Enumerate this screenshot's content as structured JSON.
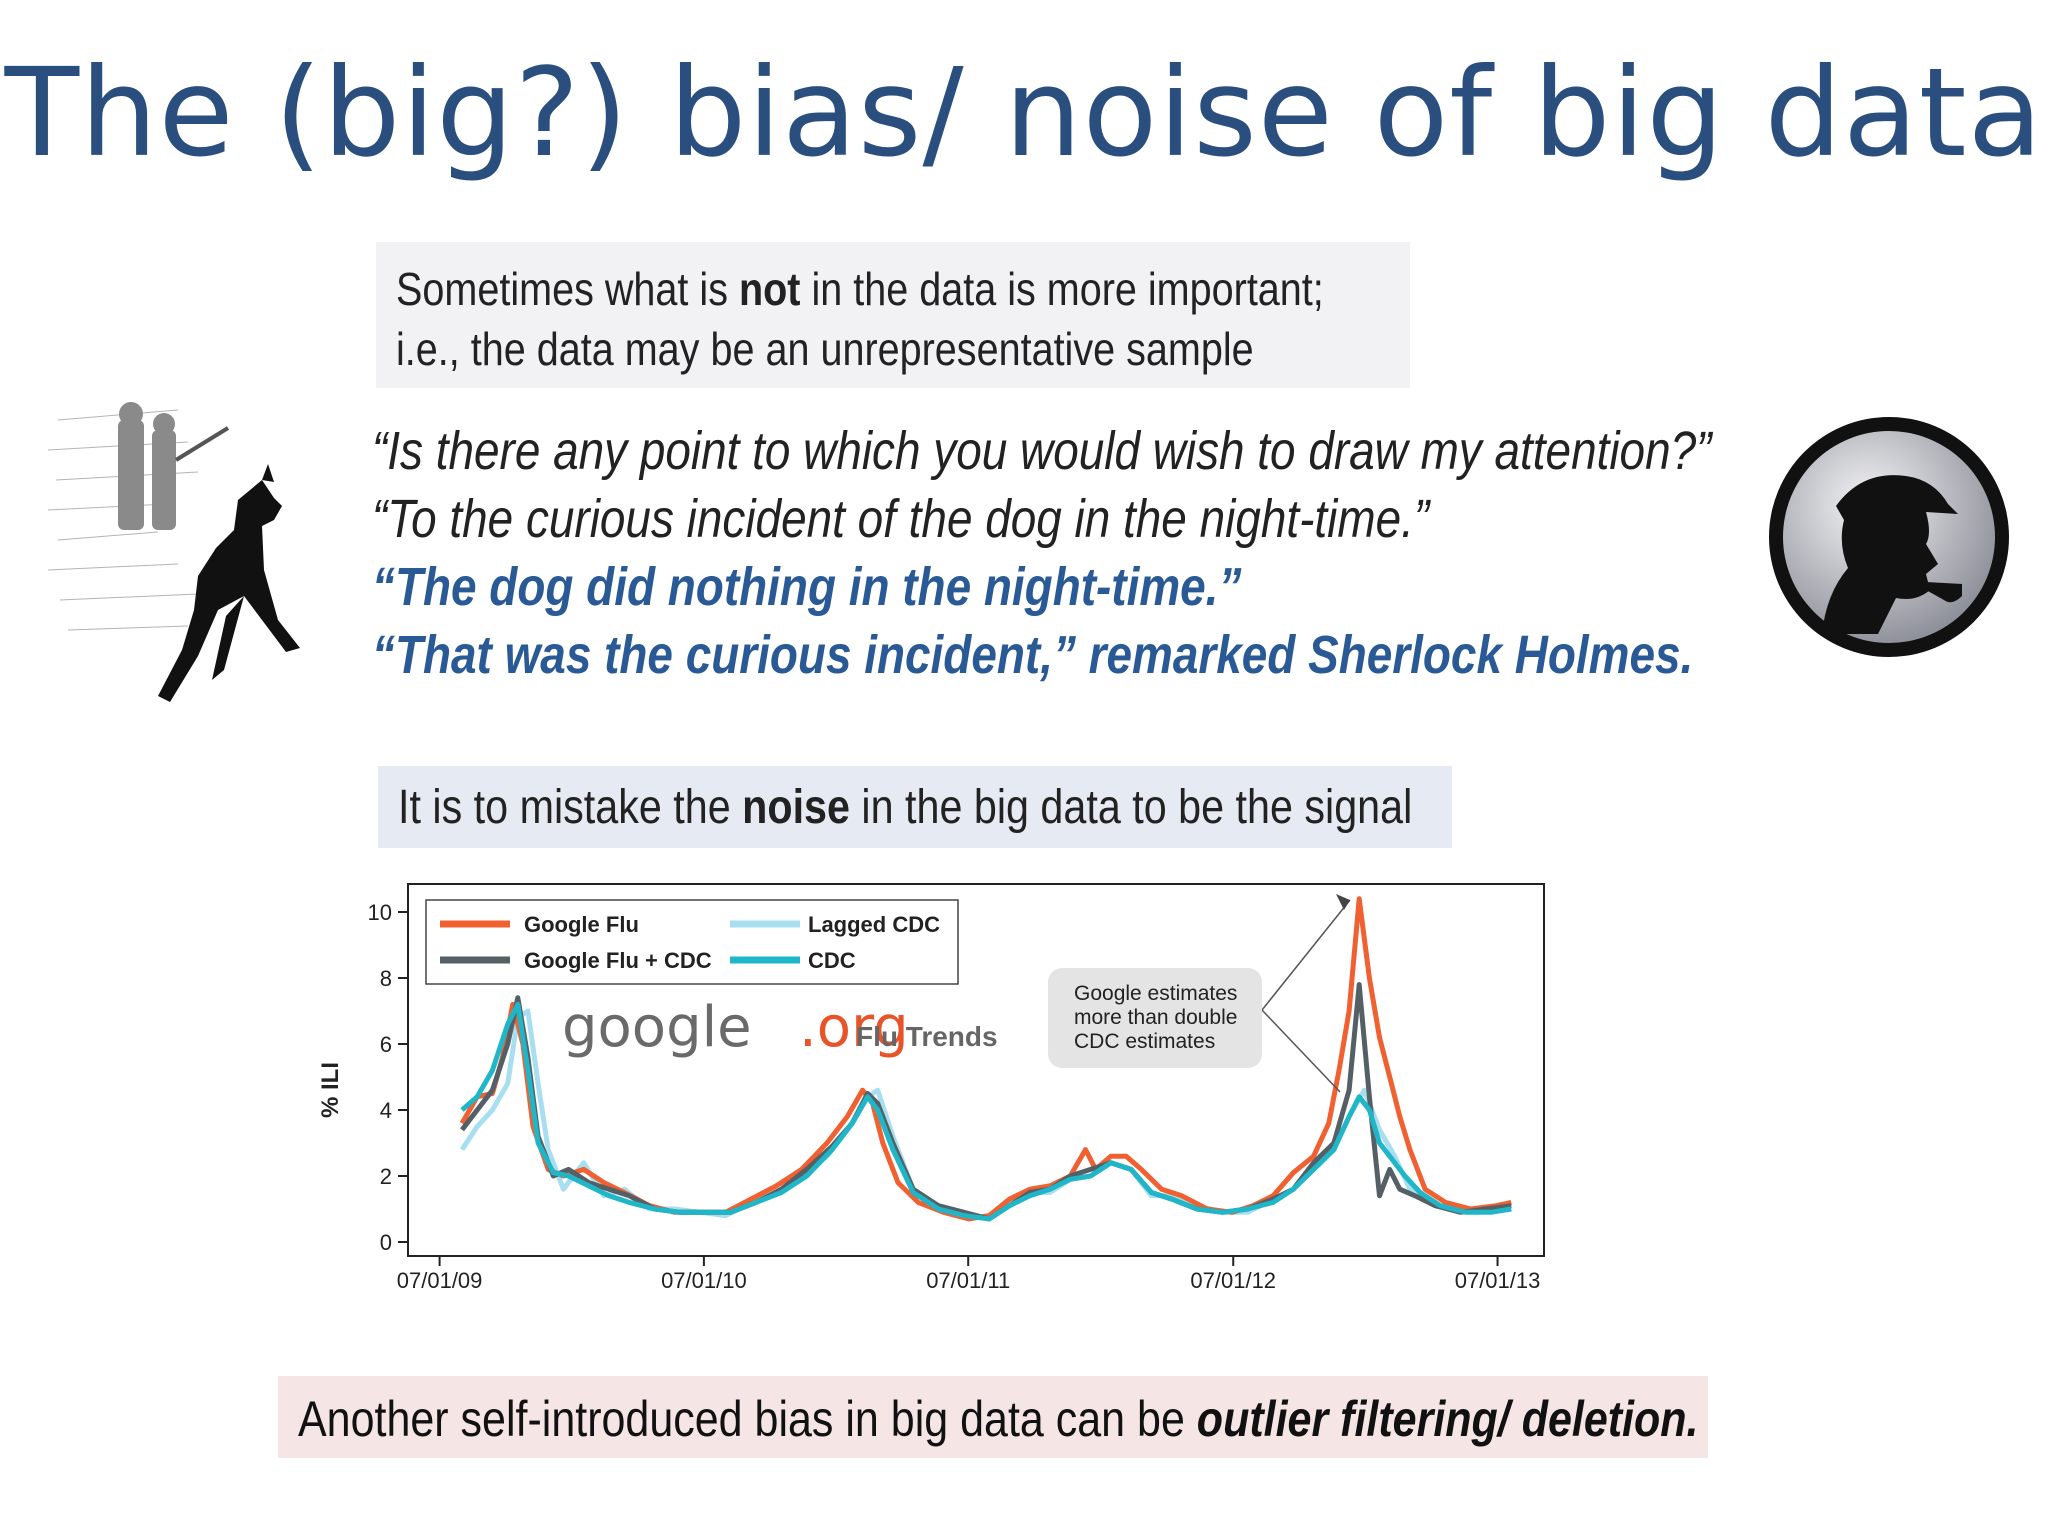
{
  "slide": {
    "title": "The (big?) bias/ noise of  big data",
    "box1": {
      "line1_pre": "Sometimes what is ",
      "line1_bold": "not",
      "line1_post": " in the data is more important;",
      "line2": "i.e., the data may be an unrepresentative sample"
    },
    "quotes": [
      "“Is there any point to which you would wish to draw my attention?”",
      "“To the curious incident of the dog in the night-time.”",
      "“The dog did nothing in the night-time.”",
      "“That was the curious incident,” remarked Sherlock Holmes."
    ],
    "box2": {
      "pre": "It is to mistake the ",
      "bold": "noise",
      "post": " in the big data to be the signal"
    },
    "box3": {
      "pre": "Another self-introduced bias in big data can be ",
      "bold": "outlier filtering/ deletion."
    }
  },
  "colors": {
    "title": "#2a4f7e",
    "quote_blue": "#2a5a95",
    "google_flu": "#f06030",
    "google_flu_cdc": "#556066",
    "lagged_cdc": "#a8dff0",
    "cdc": "#1fb6c8"
  },
  "chart_data": {
    "type": "line",
    "ylabel": "% ILI",
    "ylim": [
      0,
      10
    ],
    "yticks": [
      0,
      2,
      4,
      6,
      8,
      10
    ],
    "xlim": [
      "2009-06-15",
      "2013-08-01"
    ],
    "xticks": [
      {
        "date": "2009-07-01",
        "label": "07/01/09"
      },
      {
        "date": "2010-07-01",
        "label": "07/01/10"
      },
      {
        "date": "2011-07-01",
        "label": "07/01/11"
      },
      {
        "date": "2012-07-01",
        "label": "07/01/12"
      },
      {
        "date": "2013-07-01",
        "label": "07/01/13"
      }
    ],
    "legend": {
      "placement": "top-left",
      "labels": [
        "Google Flu",
        "Lagged CDC",
        "Google Flu + CDC",
        "CDC"
      ]
    },
    "logo": {
      "google": "google",
      "org": ".org",
      "flu_trends": "Flu Trends"
    },
    "annotation": {
      "lines": [
        "Google estimates",
        "more than double",
        "CDC estimates"
      ]
    },
    "series": [
      {
        "name": "Google Flu",
        "x": [
          "2009-08-01",
          "2009-08-22",
          "2009-09-12",
          "2009-09-26",
          "2009-10-10",
          "2009-10-24",
          "2009-11-07",
          "2009-11-28",
          "2009-12-19",
          "2010-01-16",
          "2010-02-13",
          "2010-03-13",
          "2010-04-17",
          "2010-05-22",
          "2010-06-26",
          "2010-07-31",
          "2010-09-04",
          "2010-10-09",
          "2010-11-13",
          "2010-12-18",
          "2011-01-15",
          "2011-02-05",
          "2011-02-19",
          "2011-03-05",
          "2011-03-26",
          "2011-04-23",
          "2011-05-28",
          "2011-07-02",
          "2011-07-30",
          "2011-08-27",
          "2011-09-24",
          "2011-10-22",
          "2011-11-19",
          "2011-12-10",
          "2011-12-24",
          "2012-01-14",
          "2012-02-04",
          "2012-02-25",
          "2012-03-24",
          "2012-04-21",
          "2012-05-26",
          "2012-06-30",
          "2012-07-28",
          "2012-08-25",
          "2012-09-22",
          "2012-10-20",
          "2012-11-10",
          "2012-11-24",
          "2012-12-08",
          "2012-12-22",
          "2013-01-05",
          "2013-01-19",
          "2013-02-02",
          "2013-02-16",
          "2013-03-02",
          "2013-03-23",
          "2013-04-20",
          "2013-05-25",
          "2013-06-29",
          "2013-07-20"
        ],
        "values": [
          3.6,
          4.4,
          4.5,
          5.6,
          7.2,
          6.0,
          3.5,
          2.2,
          2.0,
          2.2,
          1.8,
          1.5,
          1.1,
          0.9,
          0.9,
          0.9,
          1.3,
          1.7,
          2.2,
          3.0,
          3.8,
          4.6,
          4.2,
          3.0,
          1.8,
          1.2,
          0.9,
          0.7,
          0.8,
          1.3,
          1.6,
          1.7,
          2.0,
          2.8,
          2.2,
          2.6,
          2.6,
          2.2,
          1.6,
          1.4,
          1.0,
          0.9,
          1.1,
          1.4,
          2.1,
          2.6,
          3.6,
          5.2,
          7.0,
          10.4,
          8.0,
          6.2,
          5.0,
          3.8,
          2.8,
          1.6,
          1.2,
          1.0,
          1.1,
          1.2
        ]
      },
      {
        "name": "Lagged CDC",
        "x": [
          "2009-08-01",
          "2009-08-22",
          "2009-09-12",
          "2009-10-03",
          "2009-10-17",
          "2009-10-31",
          "2009-11-14",
          "2009-11-28",
          "2009-12-19",
          "2010-01-16",
          "2010-02-13",
          "2010-03-13",
          "2010-04-17",
          "2010-05-22",
          "2010-06-26",
          "2010-07-31",
          "2010-09-04",
          "2010-10-09",
          "2010-11-13",
          "2010-12-18",
          "2011-01-15",
          "2011-02-12",
          "2011-02-26",
          "2011-03-19",
          "2011-04-16",
          "2011-05-21",
          "2011-06-25",
          "2011-07-30",
          "2011-08-27",
          "2011-09-24",
          "2011-10-22",
          "2011-11-19",
          "2011-12-17",
          "2012-01-14",
          "2012-02-11",
          "2012-03-10",
          "2012-04-07",
          "2012-05-12",
          "2012-06-16",
          "2012-07-21",
          "2012-08-25",
          "2012-09-22",
          "2012-10-20",
          "2012-11-17",
          "2012-12-08",
          "2012-12-29",
          "2013-01-19",
          "2013-02-09",
          "2013-03-02",
          "2013-03-30",
          "2013-04-27",
          "2013-06-01",
          "2013-07-06",
          "2013-07-20"
        ],
        "values": [
          2.8,
          3.5,
          4.0,
          4.8,
          6.8,
          7.0,
          4.8,
          2.8,
          1.6,
          2.4,
          1.4,
          1.6,
          1.0,
          1.0,
          0.9,
          0.8,
          1.2,
          1.5,
          2.0,
          2.6,
          3.4,
          4.4,
          4.6,
          3.2,
          1.6,
          1.0,
          0.8,
          0.7,
          1.2,
          1.5,
          1.5,
          1.9,
          2.0,
          2.4,
          2.2,
          1.4,
          1.4,
          1.1,
          0.9,
          0.9,
          1.3,
          1.6,
          2.2,
          2.8,
          3.8,
          4.6,
          3.4,
          2.6,
          1.6,
          1.2,
          1.0,
          0.9,
          1.0,
          1.0
        ]
      },
      {
        "name": "Google Flu + CDC",
        "x": [
          "2009-08-01",
          "2009-08-22",
          "2009-09-12",
          "2009-10-03",
          "2009-10-17",
          "2009-10-31",
          "2009-11-14",
          "2009-12-05",
          "2009-12-26",
          "2010-01-23",
          "2010-02-20",
          "2010-03-20",
          "2010-04-24",
          "2010-05-29",
          "2010-07-03",
          "2010-08-07",
          "2010-09-11",
          "2010-10-16",
          "2010-11-20",
          "2010-12-25",
          "2011-01-22",
          "2011-02-12",
          "2011-02-26",
          "2011-03-19",
          "2011-04-16",
          "2011-05-21",
          "2011-06-25",
          "2011-07-30",
          "2011-08-27",
          "2011-09-24",
          "2011-10-22",
          "2011-11-19",
          "2011-12-17",
          "2012-01-14",
          "2012-02-11",
          "2012-03-10",
          "2012-04-07",
          "2012-05-12",
          "2012-06-16",
          "2012-07-21",
          "2012-08-25",
          "2012-09-22",
          "2012-10-20",
          "2012-11-17",
          "2012-12-08",
          "2012-12-22",
          "2013-01-05",
          "2013-01-19",
          "2013-02-02",
          "2013-02-16",
          "2013-03-09",
          "2013-04-06",
          "2013-05-11",
          "2013-06-15",
          "2013-07-20"
        ],
        "values": [
          3.4,
          4.0,
          4.6,
          6.0,
          7.4,
          5.6,
          3.2,
          2.0,
          2.2,
          1.8,
          1.6,
          1.4,
          1.0,
          0.9,
          0.9,
          0.9,
          1.2,
          1.6,
          2.2,
          2.9,
          3.6,
          4.5,
          4.2,
          3.0,
          1.6,
          1.1,
          0.9,
          0.7,
          1.1,
          1.5,
          1.6,
          2.0,
          2.2,
          2.4,
          2.2,
          1.5,
          1.3,
          1.0,
          0.9,
          1.0,
          1.3,
          1.6,
          2.4,
          3.0,
          4.6,
          7.8,
          4.4,
          1.4,
          2.2,
          1.6,
          1.4,
          1.1,
          0.9,
          1.0,
          1.1
        ]
      },
      {
        "name": "CDC",
        "x": [
          "2009-08-01",
          "2009-08-22",
          "2009-09-12",
          "2009-10-03",
          "2009-10-17",
          "2009-10-31",
          "2009-11-14",
          "2009-12-05",
          "2009-12-26",
          "2010-01-23",
          "2010-02-20",
          "2010-03-20",
          "2010-04-24",
          "2010-05-29",
          "2010-07-03",
          "2010-08-07",
          "2010-09-11",
          "2010-10-16",
          "2010-11-20",
          "2010-12-25",
          "2011-01-22",
          "2011-02-12",
          "2011-02-26",
          "2011-03-19",
          "2011-04-16",
          "2011-05-21",
          "2011-06-25",
          "2011-07-30",
          "2011-08-27",
          "2011-09-24",
          "2011-10-22",
          "2011-11-19",
          "2011-12-17",
          "2012-01-14",
          "2012-02-11",
          "2012-03-10",
          "2012-04-07",
          "2012-05-12",
          "2012-06-16",
          "2012-07-21",
          "2012-08-25",
          "2012-09-22",
          "2012-10-20",
          "2012-11-17",
          "2012-12-08",
          "2012-12-22",
          "2013-01-05",
          "2013-01-19",
          "2013-02-02",
          "2013-02-23",
          "2013-03-16",
          "2013-04-13",
          "2013-05-18",
          "2013-06-22",
          "2013-07-20"
        ],
        "values": [
          4.0,
          4.4,
          5.2,
          6.6,
          7.2,
          5.2,
          3.0,
          2.1,
          2.0,
          1.7,
          1.4,
          1.2,
          1.0,
          0.9,
          0.9,
          0.9,
          1.2,
          1.5,
          2.0,
          2.8,
          3.6,
          4.4,
          4.0,
          2.8,
          1.5,
          1.0,
          0.8,
          0.7,
          1.1,
          1.4,
          1.6,
          1.9,
          2.0,
          2.4,
          2.2,
          1.5,
          1.3,
          1.0,
          0.9,
          1.0,
          1.2,
          1.6,
          2.2,
          2.8,
          3.8,
          4.4,
          4.0,
          3.0,
          2.6,
          2.0,
          1.5,
          1.1,
          0.9,
          0.9,
          1.0
        ]
      }
    ]
  }
}
